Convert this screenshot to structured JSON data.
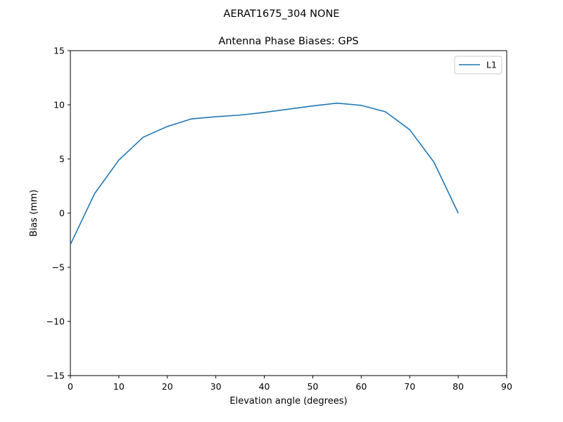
{
  "chart_data": {
    "type": "line",
    "suptitle": "AERAT1675_304   NONE",
    "title": "Antenna Phase Biases: GPS",
    "xlabel": "Elevation angle (degrees)",
    "ylabel": "Bias (mm)",
    "xlim": [
      0,
      90
    ],
    "ylim": [
      -15,
      15
    ],
    "x_ticks": [
      0,
      10,
      20,
      30,
      40,
      50,
      60,
      70,
      80,
      90
    ],
    "x_tick_labels": [
      "0",
      "10",
      "20",
      "30",
      "40",
      "50",
      "60",
      "70",
      "80",
      "90"
    ],
    "y_ticks": [
      -15,
      -10,
      -5,
      0,
      5,
      10,
      15
    ],
    "y_tick_labels": [
      "−15",
      "−10",
      "−5",
      "0",
      "5",
      "10",
      "15"
    ],
    "grid": false,
    "legend_position": "top-right",
    "x": [
      0,
      5,
      10,
      15,
      20,
      25,
      30,
      35,
      40,
      45,
      50,
      55,
      60,
      65,
      70,
      75,
      80
    ],
    "series": [
      {
        "name": "L1",
        "color": "#1f77b4",
        "values": [
          -2.9,
          1.8,
          4.9,
          7.0,
          8.0,
          8.7,
          8.9,
          9.05,
          9.3,
          9.6,
          9.9,
          10.15,
          9.95,
          9.35,
          7.7,
          4.7,
          0.0
        ]
      }
    ]
  }
}
